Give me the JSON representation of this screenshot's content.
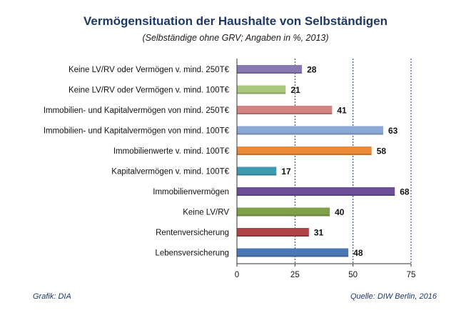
{
  "chart_data": {
    "type": "bar",
    "orientation": "horizontal",
    "title": "Vermögensituation der Haushalte von Selbständigen",
    "subtitle": "(Selbständige ohne GRV; Angaben in %, 2013)",
    "xlim": [
      0,
      75
    ],
    "xticks": [
      0,
      25,
      50,
      75
    ],
    "grid": "vertical dashed",
    "categories": [
      "Keine LV/RV oder Vermögen v. mind. 250T€",
      "Keine LV/RV oder Vermögen v. mind. 100T€",
      "Immobilien- und Kapitalvermögen von mind. 250T€",
      "Immobilien- und Kapitalvermögen von mind. 100T€",
      "Immobilienwerte v. mind. 100T€",
      "Kapitalvermögen v. mind. 100T€",
      "Immobilienvermögen",
      "Keine LV/RV",
      "Rentenversicherung",
      "Lebensversicherung"
    ],
    "values": [
      28,
      21,
      41,
      63,
      58,
      17,
      68,
      40,
      31,
      48
    ],
    "colors": [
      "#8a78b0",
      "#a8c97a",
      "#d48382",
      "#8aa8d6",
      "#ea8a38",
      "#3e9ab0",
      "#6b4f96",
      "#7ea04a",
      "#b04346",
      "#4a78b4"
    ]
  },
  "footer": {
    "left": "Grafik: DIA",
    "right": "Quelle: DIW Berlin, 2016"
  }
}
